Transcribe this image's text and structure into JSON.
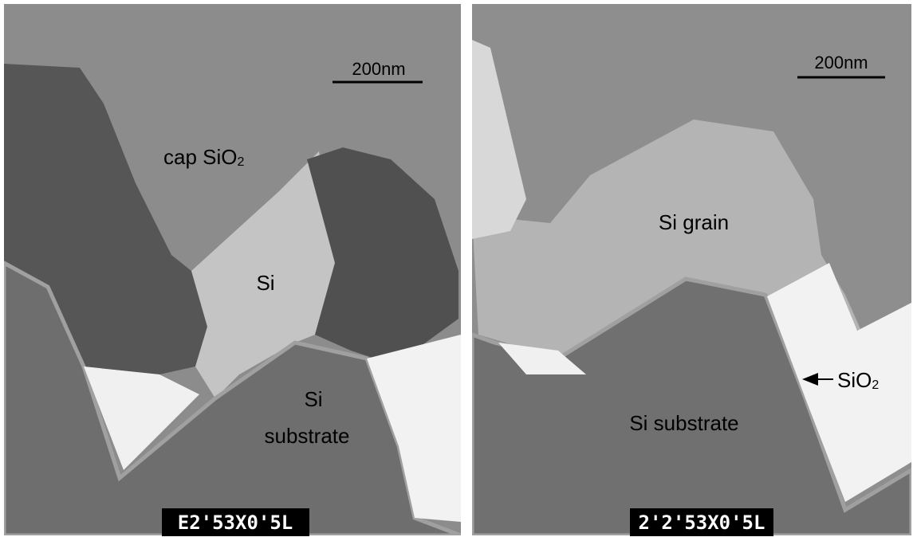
{
  "panels": [
    {
      "scale_bar": "200nm",
      "labels": [
        {
          "text": "cap SiO",
          "subscript": "2"
        },
        {
          "text": "Si"
        },
        {
          "text": "Si"
        },
        {
          "text": "substrate"
        }
      ],
      "plate": "E2'53X0'5L"
    },
    {
      "scale_bar": "200nm",
      "labels": [
        {
          "text": "Si grain"
        },
        {
          "text": "Si substrate"
        },
        {
          "text": "SiO",
          "subscript": "2"
        }
      ],
      "plate": "2'2'53X0'5L"
    }
  ]
}
